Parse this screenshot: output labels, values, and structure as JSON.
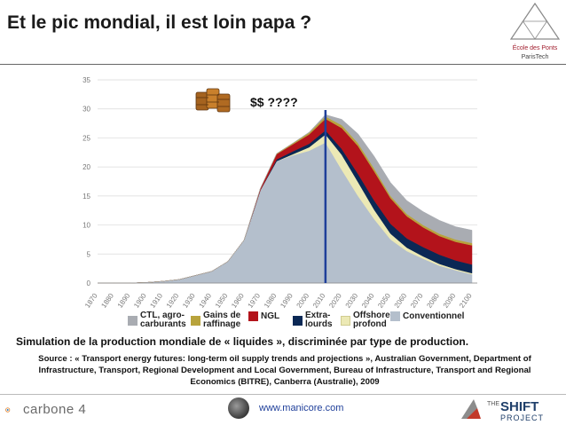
{
  "header": {
    "title": "Et le pic mondial, il est loin papa ?",
    "logo_line1": "École des Ponts",
    "logo_line2": "ParisTech"
  },
  "annotation": {
    "text": "$$ ????",
    "icon": "oil-barrels-icon"
  },
  "chart_data": {
    "type": "area",
    "stacked": true,
    "x": [
      1870,
      1880,
      1890,
      1900,
      1910,
      1920,
      1930,
      1940,
      1950,
      1960,
      1970,
      1980,
      1990,
      2000,
      2010,
      2020,
      2030,
      2040,
      2050,
      2060,
      2070,
      2080,
      2090,
      2100
    ],
    "xlim": [
      1870,
      2100
    ],
    "ylim": [
      0,
      35
    ],
    "yticks": [
      0,
      5,
      10,
      15,
      20,
      25,
      30,
      35
    ],
    "grid": true,
    "marker_year": 2010,
    "series": [
      {
        "name": "Conventionnel",
        "color": "#b4bfcc",
        "values": [
          0,
          0,
          0,
          0.1,
          0.3,
          0.6,
          1.3,
          2.0,
          3.7,
          7.4,
          16.0,
          21.0,
          22.0,
          22.8,
          24.2,
          19.5,
          15.0,
          11.0,
          7.5,
          5.5,
          4.2,
          3.0,
          2.2,
          1.5
        ]
      },
      {
        "name": "Offshore profond",
        "color": "#ece9b5",
        "values": [
          0,
          0,
          0,
          0,
          0,
          0,
          0,
          0,
          0,
          0,
          0,
          0,
          0.2,
          0.6,
          1.4,
          2.6,
          2.4,
          1.6,
          1.0,
          0.6,
          0.4,
          0.3,
          0.2,
          0.2
        ]
      },
      {
        "name": "Extra-lourds",
        "color": "#0b2855",
        "values": [
          0,
          0,
          0,
          0,
          0,
          0,
          0,
          0,
          0,
          0,
          0,
          0.3,
          0.5,
          0.6,
          0.7,
          1.0,
          1.4,
          1.6,
          1.7,
          1.6,
          1.6,
          1.6,
          1.5,
          1.5
        ]
      },
      {
        "name": "NGL",
        "color": "#b3131b",
        "values": [
          0,
          0,
          0,
          0,
          0,
          0,
          0,
          0,
          0,
          0,
          0.3,
          0.9,
          1.2,
          1.6,
          2.0,
          3.6,
          4.8,
          5.0,
          4.4,
          3.8,
          3.4,
          3.2,
          3.2,
          3.3
        ]
      },
      {
        "name": "Gains de raffinage",
        "color": "#b8a33c",
        "values": [
          0,
          0,
          0,
          0,
          0,
          0,
          0,
          0,
          0,
          0,
          0,
          0.1,
          0.2,
          0.3,
          0.4,
          0.5,
          0.5,
          0.5,
          0.4,
          0.4,
          0.4,
          0.4,
          0.4,
          0.4
        ]
      },
      {
        "name": "CTL, agro-carburants",
        "color": "#a9acb2",
        "values": [
          0,
          0,
          0,
          0,
          0,
          0,
          0,
          0,
          0,
          0,
          0,
          0,
          0,
          0.1,
          0.3,
          1.0,
          1.6,
          2.1,
          2.3,
          2.3,
          2.3,
          2.3,
          2.2,
          2.2
        ]
      }
    ]
  },
  "legend": [
    {
      "label": "CTL, agro-\ncarburants",
      "color": "#a9acb2"
    },
    {
      "label": "Gains de\nraffinage",
      "color": "#b8a33c"
    },
    {
      "label": "NGL",
      "color": "#b3131b"
    },
    {
      "label": "Extra-\nlourds",
      "color": "#0b2855"
    },
    {
      "label": "Offshore\nprofond",
      "color": "#ece9b5"
    },
    {
      "label": "Conventionnel",
      "color": "#b4bfcc"
    }
  ],
  "caption": "Simulation de la production mondiale de « liquides », discriminée par type de production.",
  "source": "Source : « Transport energy futures: long-term oil supply trends and projections », Australian Government, Department of Infrastructure, Transport, Regional Development and Local Government, Bureau of Infrastructure, Transport and Regional Economics (BITRE), Canberra (Australie), 2009",
  "footer": {
    "left_logo": "carbone 4",
    "url": "www.manicore.com",
    "right_logo_the": "THE",
    "right_logo_shift": "SHIFT",
    "right_logo_project": "PROJECT"
  }
}
